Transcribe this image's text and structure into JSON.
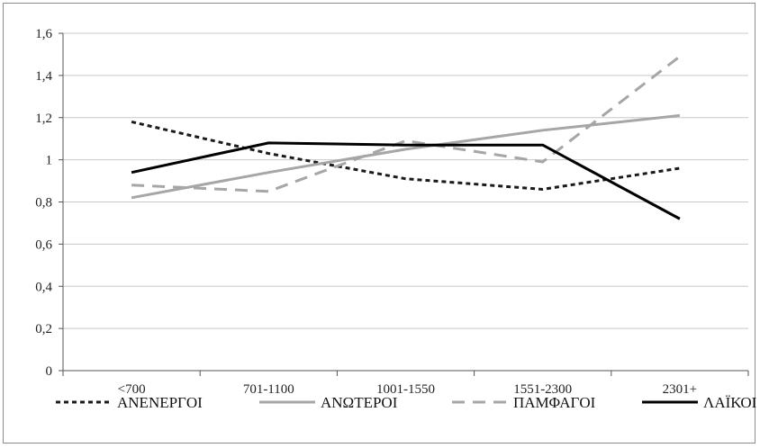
{
  "chart_data": {
    "type": "line",
    "title": "",
    "xlabel": "",
    "ylabel": "",
    "categories": [
      "<700",
      "701-1100",
      "1001-1550",
      "1551-2300",
      "2301+"
    ],
    "ylim": [
      0,
      1.6
    ],
    "yticks": [
      "0",
      "0,2",
      "0,4",
      "0,6",
      "0,8",
      "1",
      "1,2",
      "1,4",
      "1,6"
    ],
    "grid": true,
    "legend_position": "bottom",
    "series": [
      {
        "name": "ΑΝΕΝΕΡΓΟΙ",
        "values": [
          1.18,
          1.03,
          0.91,
          0.86,
          0.96
        ],
        "color": "#1a1a1a",
        "style": "dotted"
      },
      {
        "name": "ΑΝΩΤΕΡΟΙ",
        "values": [
          0.82,
          0.94,
          1.05,
          1.14,
          1.21
        ],
        "color": "#a6a6a6",
        "style": "solid"
      },
      {
        "name": "ΠΑΜΦΑΓΟΙ",
        "values": [
          0.88,
          0.85,
          1.09,
          0.99,
          1.49
        ],
        "color": "#a6a6a6",
        "style": "dashed"
      },
      {
        "name": "ΛΑΪΚΟΙ",
        "values": [
          0.94,
          1.08,
          1.07,
          1.07,
          0.72
        ],
        "color": "#000000",
        "style": "solid"
      }
    ]
  }
}
